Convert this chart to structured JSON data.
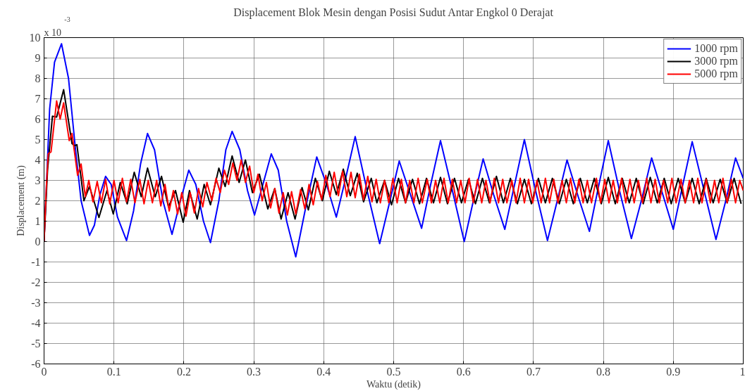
{
  "chart_data": {
    "type": "line",
    "title": "Displacement Blok Mesin dengan Posisi Sudut Antar Engkol 0 Derajat",
    "xlabel": "Waktu (detik)",
    "ylabel": "Displacement (m)",
    "annotations": [
      "x 10$^{-3}$"
    ],
    "xlim": [
      0,
      1
    ],
    "xticks": [
      0,
      0.1,
      0.2,
      0.3,
      0.4,
      0.5,
      0.6,
      0.7,
      0.8,
      0.9,
      1
    ],
    "ylim": [
      -6,
      10
    ],
    "yticks": [
      -6,
      -5,
      -4,
      -3,
      -2,
      -1,
      0,
      1,
      2,
      3,
      4,
      5,
      6,
      7,
      8,
      9,
      10
    ],
    "grid": true,
    "legend": "top right",
    "line_style": "solid",
    "series": [
      {
        "name": "1000 rpm",
        "color": "#0000ff",
        "x": [
          0,
          0.008,
          0.015,
          0.025,
          0.035,
          0.045,
          0.053,
          0.065,
          0.072,
          0.08,
          0.088,
          0.096,
          0.105,
          0.118,
          0.128,
          0.138,
          0.148,
          0.158,
          0.17,
          0.183,
          0.195,
          0.207,
          0.217,
          0.228,
          0.238,
          0.25,
          0.26,
          0.269,
          0.28,
          0.291,
          0.301,
          0.313,
          0.325,
          0.335,
          0.347,
          0.36,
          0.375,
          0.39,
          0.404,
          0.418,
          0.432,
          0.445,
          0.462,
          0.48,
          0.494,
          0.508,
          0.524,
          0.54,
          0.553,
          0.567,
          0.584,
          0.601,
          0.614,
          0.628,
          0.643,
          0.659,
          0.673,
          0.687,
          0.703,
          0.72,
          0.734,
          0.748,
          0.764,
          0.78,
          0.793,
          0.807,
          0.823,
          0.84,
          0.855,
          0.869,
          0.885,
          0.9,
          0.913,
          0.927,
          0.944,
          0.961,
          0.975,
          0.989,
          1.0
        ],
        "values": [
          0,
          6.5,
          8.8,
          9.7,
          8.0,
          4.5,
          2.0,
          0.3,
          0.8,
          2.3,
          3.2,
          2.8,
          1.2,
          0.05,
          1.5,
          3.8,
          5.3,
          4.5,
          2.0,
          0.35,
          2.0,
          3.5,
          2.8,
          1.0,
          -0.05,
          2.0,
          4.5,
          5.4,
          4.5,
          2.5,
          1.3,
          2.8,
          4.3,
          3.5,
          1.0,
          -0.75,
          1.8,
          4.15,
          2.8,
          1.2,
          3.2,
          5.15,
          2.5,
          -0.1,
          1.9,
          3.95,
          2.3,
          0.65,
          2.8,
          4.95,
          2.5,
          0.0,
          2.0,
          4.05,
          2.3,
          0.6,
          2.8,
          5.0,
          2.5,
          0.05,
          2.0,
          4.0,
          2.2,
          0.5,
          2.7,
          4.95,
          2.5,
          0.15,
          2.1,
          4.1,
          2.3,
          0.6,
          2.7,
          4.9,
          2.5,
          0.1,
          2.0,
          4.1,
          3.1
        ]
      },
      {
        "name": "3000 rpm",
        "color": "#000000",
        "x": [
          0,
          0.005,
          0.012,
          0.018,
          0.028,
          0.04,
          0.044,
          0.047,
          0.057,
          0.065,
          0.0785,
          0.09,
          0.099,
          0.109,
          0.119,
          0.129,
          0.139,
          0.148,
          0.159,
          0.168,
          0.178,
          0.188,
          0.199,
          0.208,
          0.219,
          0.229,
          0.238,
          0.25,
          0.259,
          0.269,
          0.279,
          0.288,
          0.298,
          0.308,
          0.32,
          0.33,
          0.339,
          0.349,
          0.359,
          0.369,
          0.378,
          0.388,
          0.398,
          0.408,
          0.418,
          0.428,
          0.438,
          0.448,
          0.457,
          0.468,
          0.476,
          0.487,
          0.497,
          0.507,
          0.517,
          0.527,
          0.537,
          0.547,
          0.557,
          0.567,
          0.577,
          0.587,
          0.597,
          0.607,
          0.617,
          0.627,
          0.637,
          0.647,
          0.657,
          0.667,
          0.677,
          0.687,
          0.697,
          0.707,
          0.717,
          0.727,
          0.737,
          0.747,
          0.757,
          0.767,
          0.777,
          0.787,
          0.797,
          0.807,
          0.817,
          0.827,
          0.837,
          0.847,
          0.857,
          0.867,
          0.877,
          0.887,
          0.897,
          0.907,
          0.917,
          0.927,
          0.937,
          0.947,
          0.957,
          0.967,
          0.977,
          0.987,
          0.997
        ],
        "values": [
          0,
          3.5,
          6.15,
          6.1,
          7.45,
          4.8,
          4.7,
          4.75,
          2.0,
          2.7,
          1.18,
          2.5,
          1.35,
          2.9,
          1.85,
          3.4,
          2.2,
          3.6,
          2.2,
          3.2,
          1.7,
          2.5,
          0.95,
          2.5,
          1.1,
          2.8,
          1.8,
          3.6,
          2.7,
          4.2,
          2.9,
          4.0,
          2.4,
          3.3,
          1.6,
          2.6,
          1.1,
          2.4,
          1.1,
          2.65,
          1.55,
          3.1,
          2.0,
          3.45,
          2.3,
          3.55,
          2.25,
          3.35,
          1.95,
          3.1,
          1.9,
          3.0,
          1.8,
          3.1,
          1.9,
          3.05,
          1.85,
          3.1,
          1.9,
          3.15,
          1.85,
          3.1,
          1.9,
          3.05,
          1.85,
          3.1,
          1.9,
          3.2,
          1.9,
          3.1,
          1.85,
          3.05,
          1.85,
          3.1,
          1.9,
          3.1,
          1.85,
          3.05,
          1.85,
          3.1,
          1.9,
          3.1,
          1.85,
          3.15,
          1.85,
          3.1,
          1.9,
          3.1,
          1.85,
          3.15,
          1.9,
          3.1,
          1.85,
          3.1,
          1.9,
          3.1,
          1.85,
          3.1,
          1.9,
          3.05,
          1.9,
          3.1,
          1.85
        ]
      },
      {
        "name": "5000 rpm",
        "color": "#ff0000",
        "x": [
          0,
          0.003,
          0.006,
          0.01,
          0.018,
          0.023,
          0.028,
          0.036,
          0.04,
          0.048,
          0.053,
          0.059,
          0.064,
          0.07,
          0.076,
          0.082,
          0.088,
          0.094,
          0.1,
          0.106,
          0.112,
          0.118,
          0.124,
          0.13,
          0.137,
          0.143,
          0.149,
          0.155,
          0.161,
          0.167,
          0.173,
          0.179,
          0.185,
          0.191,
          0.197,
          0.203,
          0.209,
          0.215,
          0.221,
          0.227,
          0.233,
          0.24,
          0.246,
          0.252,
          0.258,
          0.264,
          0.27,
          0.276,
          0.282,
          0.288,
          0.294,
          0.3,
          0.306,
          0.312,
          0.318,
          0.324,
          0.33,
          0.336,
          0.342,
          0.348,
          0.354,
          0.36,
          0.367,
          0.373,
          0.379,
          0.385,
          0.391,
          0.397,
          0.403,
          0.409,
          0.415,
          0.421,
          0.427,
          0.433,
          0.439,
          0.445,
          0.451,
          0.457,
          0.463,
          0.469,
          0.475,
          0.481,
          0.487,
          0.493,
          0.499,
          0.505,
          0.511,
          0.517,
          0.523,
          0.529,
          0.535,
          0.541,
          0.548,
          0.554,
          0.56,
          0.566,
          0.572,
          0.578,
          0.584,
          0.59,
          0.596,
          0.602,
          0.608,
          0.614,
          0.62,
          0.626,
          0.632,
          0.638,
          0.644,
          0.65,
          0.656,
          0.662,
          0.669,
          0.675,
          0.681,
          0.687,
          0.693,
          0.699,
          0.705,
          0.711,
          0.717,
          0.723,
          0.729,
          0.735,
          0.741,
          0.747,
          0.753,
          0.759,
          0.765,
          0.771,
          0.777,
          0.783,
          0.79,
          0.796,
          0.802,
          0.808,
          0.814,
          0.82,
          0.826,
          0.832,
          0.838,
          0.844,
          0.85,
          0.856,
          0.862,
          0.868,
          0.874,
          0.88,
          0.886,
          0.892,
          0.898,
          0.904,
          0.911,
          0.917,
          0.923,
          0.929,
          0.935,
          0.941,
          0.947,
          0.953,
          0.959,
          0.965,
          0.971,
          0.977,
          0.983,
          0.989,
          0.995,
          1.0
        ],
        "values": [
          0,
          2.5,
          4.3,
          4.4,
          6.9,
          6.0,
          6.8,
          4.95,
          5.3,
          3.25,
          3.8,
          2.2,
          3.0,
          1.95,
          2.95,
          1.9,
          3.05,
          1.85,
          3.0,
          1.9,
          3.1,
          1.95,
          3.05,
          1.9,
          3.05,
          1.85,
          3.0,
          1.9,
          3.0,
          1.75,
          2.8,
          1.5,
          2.5,
          1.35,
          2.4,
          1.25,
          2.4,
          1.4,
          2.6,
          1.7,
          2.9,
          2.0,
          3.1,
          2.4,
          3.5,
          2.8,
          3.85,
          3.0,
          4.0,
          2.9,
          3.7,
          2.4,
          3.3,
          2.0,
          2.9,
          1.65,
          2.6,
          1.4,
          2.4,
          1.3,
          2.45,
          1.35,
          2.55,
          1.6,
          2.8,
          1.8,
          2.95,
          2.05,
          3.25,
          2.2,
          3.4,
          2.25,
          3.45,
          2.2,
          3.4,
          2.15,
          3.3,
          2.05,
          3.2,
          1.95,
          3.05,
          1.9,
          3.0,
          1.9,
          3.1,
          1.9,
          3.05,
          1.9,
          3.0,
          1.9,
          3.1,
          1.9,
          3.05,
          1.9,
          3.0,
          1.9,
          3.1,
          1.9,
          3.05,
          1.9,
          3.0,
          1.9,
          3.1,
          1.9,
          3.05,
          1.9,
          3.0,
          1.9,
          3.1,
          1.9,
          3.05,
          1.9,
          3.0,
          1.9,
          3.1,
          1.9,
          3.05,
          1.9,
          3.0,
          1.9,
          3.1,
          1.9,
          3.05,
          1.9,
          3.0,
          1.9,
          3.1,
          1.9,
          3.05,
          1.9,
          3.0,
          1.9,
          3.1,
          1.9,
          3.05,
          1.9,
          3.0,
          1.9,
          3.1,
          1.9,
          3.05,
          1.9,
          3.0,
          1.9,
          3.1,
          1.9,
          3.05,
          1.9,
          3.0,
          1.9,
          3.1,
          1.9,
          3.05,
          1.9,
          3.0,
          1.9,
          3.1,
          1.9,
          3.05,
          1.9,
          3.0,
          1.9,
          3.1,
          1.9,
          3.05,
          1.9,
          3.0,
          2.5
        ]
      }
    ]
  }
}
